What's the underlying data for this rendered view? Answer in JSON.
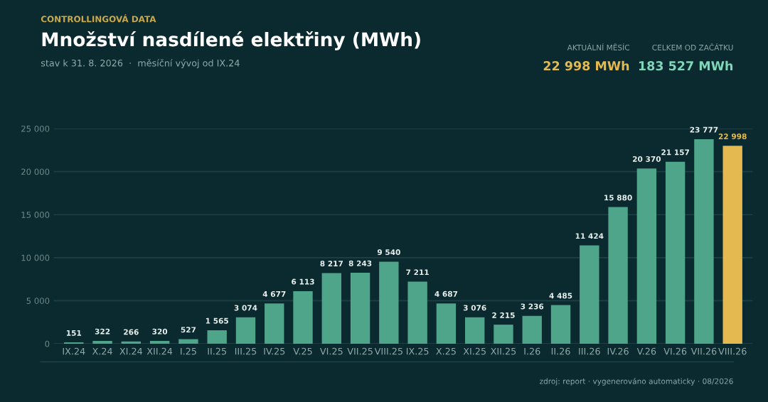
{
  "chart_data": {
    "type": "bar",
    "title": "Množství nasdílené elektřiny (MWh)",
    "subtitle": "stav k 31. 8. 2026  ·  měsíční vývoj od IX.24",
    "annotations": [
      "CONTROLLINGOVÁ DATA",
      "AKTUÁLNÍ MĚSÍC",
      "22 998 MWh",
      "CELKEM OD ZAČÁTKU",
      "183 527 MWh",
      "zdroj: report · vygenerováno automaticky · 08/2026"
    ],
    "categories": [
      "IX.24",
      "X.24",
      "XI.24",
      "XII.24",
      "I.25",
      "II.25",
      "III.25",
      "IV.25",
      "V.25",
      "VI.25",
      "VII.25",
      "VIII.25",
      "IX.25",
      "X.25",
      "XI.25",
      "XII.25",
      "I.26",
      "II.26",
      "III.26",
      "IV.26",
      "V.26",
      "VI.26",
      "VII.26",
      "VIII.26"
    ],
    "values": [
      151,
      322,
      266,
      320,
      527,
      1565,
      3074,
      4677,
      6113,
      8217,
      8243,
      9540,
      7211,
      4687,
      3076,
      2215,
      3236,
      4485,
      11424,
      15880,
      20370,
      21157,
      23777,
      22998
    ],
    "colors": [
      "#4fa58a",
      "#4fa58a",
      "#4fa58a",
      "#4fa58a",
      "#4fa58a",
      "#4fa58a",
      "#4fa58a",
      "#4fa58a",
      "#4fa58a",
      "#4fa58a",
      "#4fa58a",
      "#4fa58a",
      "#4fa58a",
      "#4fa58a",
      "#4fa58a",
      "#4fa58a",
      "#4fa58a",
      "#4fa58a",
      "#4fa58a",
      "#4fa58a",
      "#4fa58a",
      "#4fa58a",
      "#4fa58a",
      "#e3b950"
    ],
    "value_labels": [
      "151",
      "322",
      "266",
      "320",
      "527",
      "1 565",
      "3 074",
      "4 677",
      "6 113",
      "8 217",
      "8 243",
      "9 540",
      "7 211",
      "4 687",
      "3 076",
      "2 215",
      "3 236",
      "4 485",
      "11 424",
      "15 880",
      "20 370",
      "21 157",
      "23 777",
      "22 998"
    ],
    "ylim": [
      0,
      25000
    ],
    "yticks": [
      {
        "value": 0,
        "label": "0"
      },
      {
        "value": 5000,
        "label": "5 000"
      },
      {
        "value": 10000,
        "label": "10 000"
      },
      {
        "value": 15000,
        "label": "15 000"
      },
      {
        "value": 20000,
        "label": "20 000"
      },
      {
        "value": 25000,
        "label": "25 000"
      }
    ],
    "grid": "y"
  }
}
